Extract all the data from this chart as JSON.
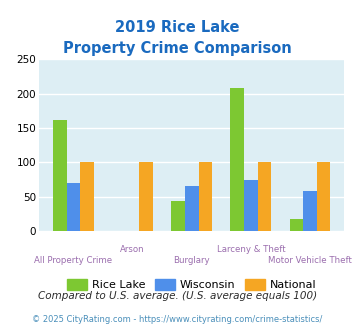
{
  "title_line1": "2019 Rice Lake",
  "title_line2": "Property Crime Comparison",
  "categories": [
    "All Property Crime",
    "Arson",
    "Burglary",
    "Larceny & Theft",
    "Motor Vehicle Theft"
  ],
  "rice_lake": [
    162,
    0,
    44,
    208,
    18
  ],
  "wisconsin": [
    70,
    0,
    65,
    74,
    58
  ],
  "national": [
    100,
    100,
    100,
    100,
    100
  ],
  "bar_colors": {
    "rice_lake": "#7dc832",
    "wisconsin": "#4f8fea",
    "national": "#f5a623"
  },
  "ylim": [
    0,
    250
  ],
  "yticks": [
    0,
    50,
    100,
    150,
    200,
    250
  ],
  "plot_bg": "#ddeef4",
  "title_color": "#1a6abf",
  "xlabel_color": "#9b6eae",
  "footnote1": "Compared to U.S. average. (U.S. average equals 100)",
  "footnote2": "© 2025 CityRating.com - https://www.cityrating.com/crime-statistics/",
  "footnote1_color": "#2c2c2c",
  "footnote2_color": "#4a8fba",
  "legend_labels": [
    "Rice Lake",
    "Wisconsin",
    "National"
  ],
  "bar_width": 0.23
}
